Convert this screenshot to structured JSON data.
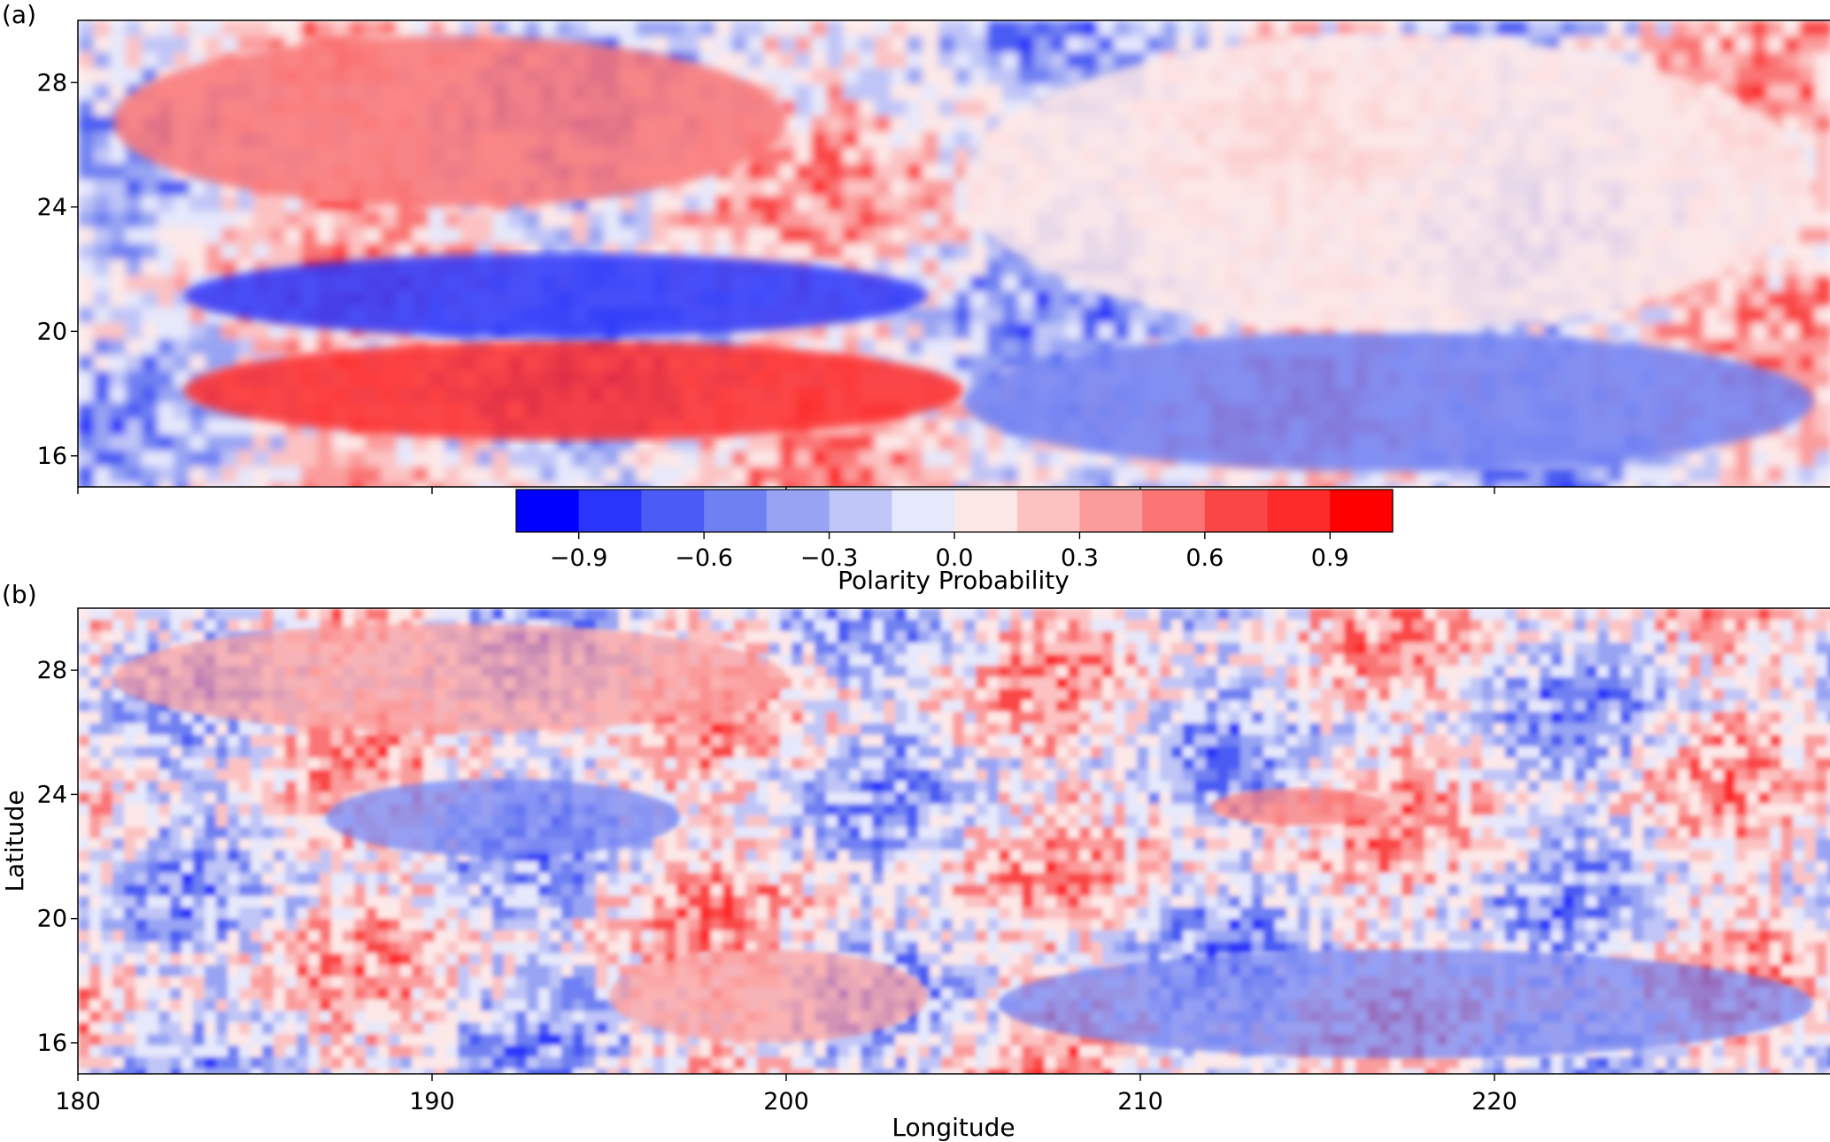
{
  "figure": {
    "colorbar": {
      "label": "Polarity Probability",
      "colors": [
        "#0000ff",
        "#2a35fa",
        "#4a5cf3",
        "#6f80f2",
        "#98a4f3",
        "#bfc5f7",
        "#e6e8fb",
        "#fde8e8",
        "#fcc2c2",
        "#fb9c9c",
        "#fa7474",
        "#fa4646",
        "#fd2a2a",
        "#ff0000"
      ],
      "ticks": [
        "−0.9",
        "−0.6",
        "−0.3",
        "0.0",
        "0.3",
        "0.6",
        "0.9"
      ],
      "tick_values": [
        -0.9,
        -0.6,
        -0.3,
        0.0,
        0.3,
        0.6,
        0.9
      ],
      "range": [
        -1.05,
        1.05
      ]
    }
  },
  "chart_data": [
    {
      "type": "heatmap",
      "panel_label": "(a)",
      "title": "",
      "xlabel": "",
      "ylabel": "",
      "xlim": [
        180,
        229.5
      ],
      "ylim": [
        15,
        30
      ],
      "x_ticks": [],
      "y_ticks": [
        16,
        20,
        24,
        28
      ],
      "y_tick_labels": [
        "16",
        "20",
        "24",
        "28"
      ],
      "value_label": "Polarity Probability",
      "features": [
        {
          "lon_range": [
            183,
            205
          ],
          "lat_range": [
            16.5,
            19.7
          ],
          "value": 0.8
        },
        {
          "lon_range": [
            183,
            204
          ],
          "lat_range": [
            19.8,
            22.5
          ],
          "value": -0.9
        },
        {
          "lon_range": [
            205,
            229
          ],
          "lat_range": [
            15.5,
            20
          ],
          "value": -0.6
        },
        {
          "lon_range": [
            181,
            200
          ],
          "lat_range": [
            24,
            29.5
          ],
          "value": 0.6
        },
        {
          "lon_range": [
            205,
            229
          ],
          "lat_range": [
            20,
            29.5
          ],
          "value": 0.0
        }
      ]
    },
    {
      "type": "heatmap",
      "panel_label": "(b)",
      "title": "",
      "xlabel": "Longitude",
      "ylabel": "Latitude",
      "xlim": [
        180,
        229.5
      ],
      "ylim": [
        15,
        30
      ],
      "x_ticks": [
        180,
        190,
        200,
        210,
        220
      ],
      "x_tick_labels": [
        "180",
        "190",
        "200",
        "210",
        "220"
      ],
      "y_ticks": [
        16,
        20,
        24,
        28
      ],
      "y_tick_labels": [
        "16",
        "20",
        "24",
        "28"
      ],
      "value_label": "Polarity Probability",
      "features": [
        {
          "lon_range": [
            187,
            197
          ],
          "lat_range": [
            22,
            24.5
          ],
          "value": -0.6
        },
        {
          "lon_range": [
            206,
            229
          ],
          "lat_range": [
            15.5,
            19
          ],
          "value": -0.5
        },
        {
          "lon_range": [
            195,
            204
          ],
          "lat_range": [
            16,
            19
          ],
          "value": 0.3
        },
        {
          "lon_range": [
            181,
            200
          ],
          "lat_range": [
            26,
            29.5
          ],
          "value": 0.4
        },
        {
          "lon_range": [
            212,
            217
          ],
          "lat_range": [
            23,
            24.2
          ],
          "value": 0.5
        }
      ]
    }
  ]
}
